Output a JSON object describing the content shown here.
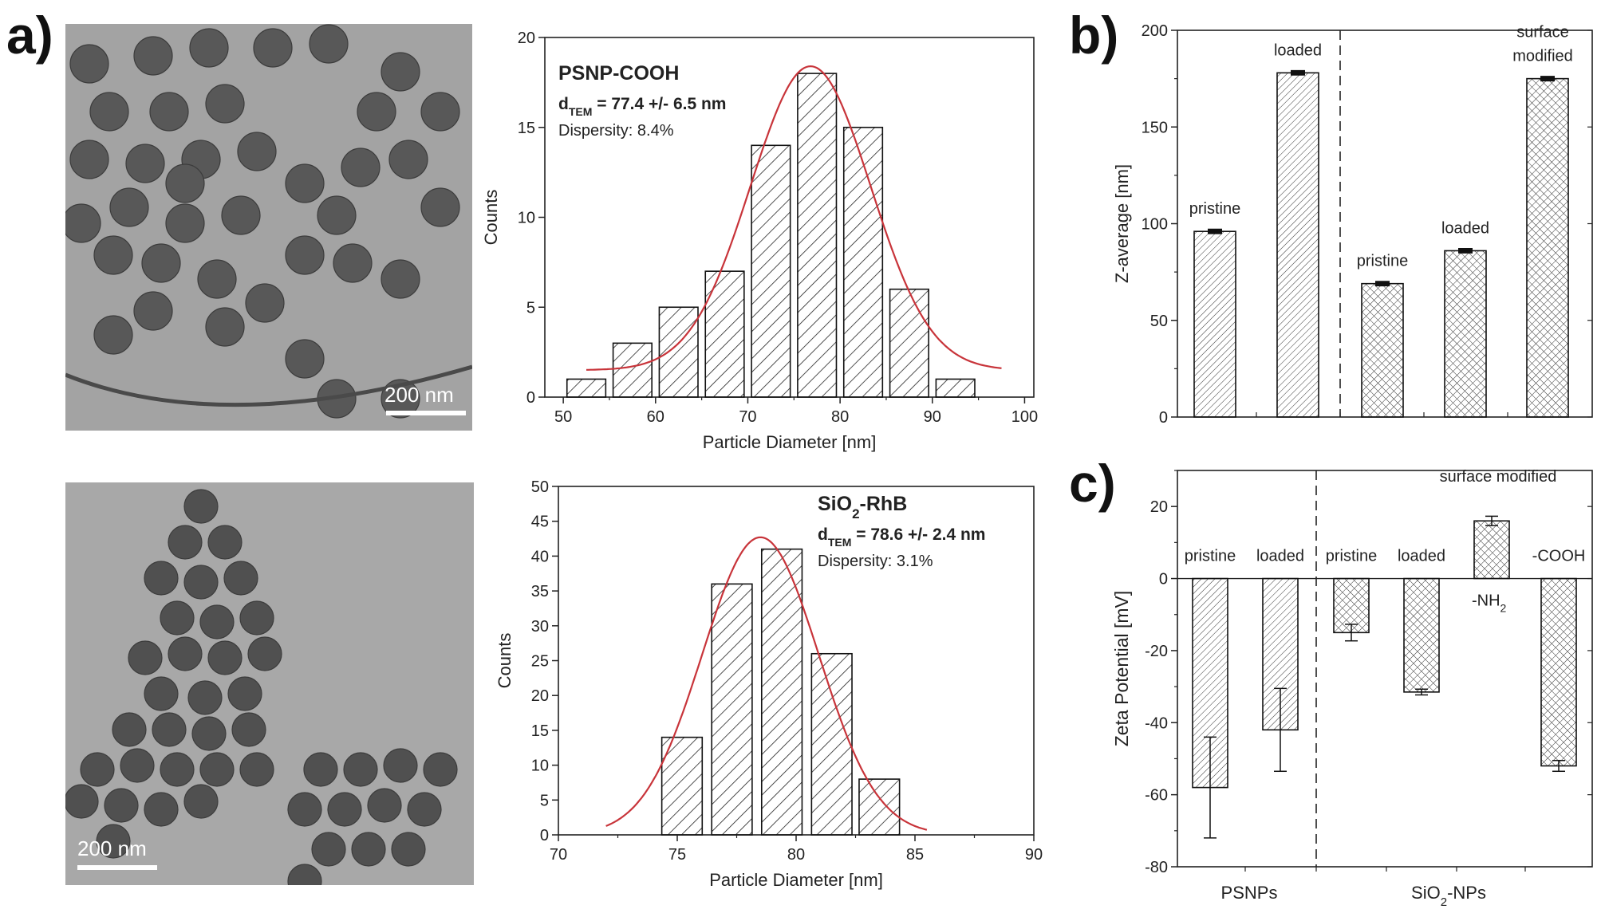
{
  "panel_labels": {
    "a": "a)",
    "b": "b)",
    "c": "c)"
  },
  "tem_images": [
    {
      "scale_label": "200 nm"
    },
    {
      "scale_label": "200 nm"
    }
  ],
  "chart_data": [
    {
      "type": "bar",
      "title": "PSNP-COOH",
      "subtitle_main": "d",
      "subtitle_sub": "TEM",
      "subtitle_rest": " = 77.4 +/- 6.5 nm",
      "note": "Dispersity: 8.4%",
      "xlabel": "Particle Diameter [nm]",
      "ylabel": "Counts",
      "xlim": [
        48,
        101
      ],
      "ylim": [
        0,
        20
      ],
      "xticks": [
        "50",
        "60",
        "70",
        "80",
        "90",
        "100"
      ],
      "yticks": [
        "0",
        "5",
        "10",
        "15",
        "20"
      ],
      "bin_centers": [
        52.5,
        57.5,
        62.5,
        67.5,
        72.5,
        77.5,
        82.5,
        87.5,
        92.5
      ],
      "values": [
        1,
        3,
        5,
        7,
        14,
        18,
        15,
        6,
        1
      ],
      "bar_width": 4.2,
      "fit": {
        "type": "gaussian",
        "mean": 76.8,
        "amplitude": 16.9,
        "sigma": 6.5,
        "offset": 1.5,
        "x_range": [
          52.5,
          97.5
        ]
      }
    },
    {
      "type": "bar",
      "title_main": "SiO",
      "title_sub": "2",
      "title_rest": "-RhB",
      "subtitle_main": "d",
      "subtitle_sub": "TEM",
      "subtitle_rest": " = 78.6 +/- 2.4 nm",
      "note": "Dispersity: 3.1%",
      "xlabel": "Particle Diameter [nm]",
      "ylabel": "Counts",
      "xlim": [
        70,
        90
      ],
      "ylim": [
        0,
        50
      ],
      "xticks": [
        "70",
        "75",
        "80",
        "85",
        "90"
      ],
      "yticks": [
        "0",
        "5",
        "10",
        "15",
        "20",
        "25",
        "30",
        "35",
        "40",
        "45",
        "50"
      ],
      "bin_centers": [
        75.2,
        77.3,
        79.4,
        81.5,
        83.5
      ],
      "values": [
        14,
        36,
        41,
        26,
        8
      ],
      "bar_width": 1.7,
      "fit": {
        "type": "gaussian",
        "mean": 78.5,
        "amplitude": 42.7,
        "sigma": 2.45,
        "offset": 0,
        "x_range": [
          72,
          85.5
        ]
      }
    },
    {
      "type": "bar",
      "ylabel": "Z-average [nm]",
      "ylim": [
        0,
        200
      ],
      "yticks": [
        "0",
        "50",
        "100",
        "150",
        "200"
      ],
      "values": [
        96,
        178,
        69,
        86,
        175
      ],
      "errors": [
        0.8,
        0.8,
        0.8,
        0.8,
        0.8
      ],
      "hatch": [
        "diag",
        "diag",
        "cross",
        "cross",
        "cross"
      ],
      "bar_labels": [
        [
          "pristine"
        ],
        [
          "loaded"
        ],
        [
          "pristine"
        ],
        [
          "loaded"
        ],
        [
          "surface",
          "modified"
        ]
      ]
    },
    {
      "type": "bar",
      "ylabel": "Zeta Potential [mV]",
      "ylim": [
        -80,
        30
      ],
      "yticks": [
        "-80",
        "-60",
        "-40",
        "-20",
        "0",
        "20"
      ],
      "values": [
        -58,
        -42,
        -15,
        -31.5,
        16,
        -52
      ],
      "errors": [
        14,
        11.5,
        2.3,
        0.8,
        1.3,
        1.5
      ],
      "hatch": [
        "diag",
        "diag",
        "cross",
        "cross",
        "cross",
        "cross"
      ],
      "bar_labels": [
        "pristine",
        "loaded",
        "pristine",
        "loaded",
        "",
        "-COOH"
      ],
      "nh2_label_main": "-NH",
      "nh2_label_sub": "2",
      "surface_label": "surface modified",
      "groups": [
        {
          "main": "PSNPs",
          "sub": "",
          "rest": ""
        },
        {
          "main": "SiO",
          "sub": "2",
          "rest": "-NPs"
        }
      ]
    }
  ]
}
